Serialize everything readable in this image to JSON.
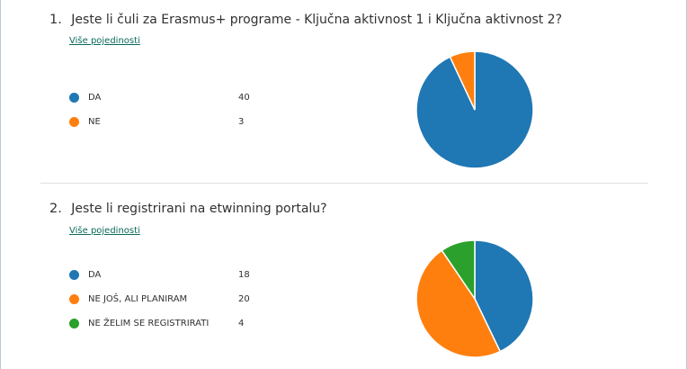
{
  "questions": [
    {
      "number": "1.",
      "title": "Jeste li čuli za Erasmus+ programe - Ključna aktivnost 1 i Ključna aktivnost 2?",
      "details_link": "Više pojedinosti",
      "legend": [
        {
          "label": "DA",
          "count": "40",
          "color": "#1f77b4"
        },
        {
          "label": "NE",
          "count": "3",
          "color": "#ff7f0e"
        }
      ]
    },
    {
      "number": "2.",
      "title": "Jeste li registrirani na etwinning portalu?",
      "details_link": "Više pojedinosti",
      "legend": [
        {
          "label": "DA",
          "count": "18",
          "color": "#1f77b4"
        },
        {
          "label": "NE JOŠ, ALI PLANIRAM",
          "count": "20",
          "color": "#ff7f0e"
        },
        {
          "label": "NE ŽELIM SE REGISTRIRATI",
          "count": "4",
          "color": "#2ca02c"
        }
      ]
    }
  ],
  "chart_data": [
    {
      "type": "pie",
      "categories": [
        "DA",
        "NE"
      ],
      "values": [
        40,
        3
      ],
      "colors": [
        "#1f77b4",
        "#ff7f0e"
      ]
    },
    {
      "type": "pie",
      "categories": [
        "DA",
        "NE JOŠ, ALI PLANIRAM",
        "NE ŽELIM SE REGISTRIRATI"
      ],
      "values": [
        18,
        20,
        4
      ],
      "colors": [
        "#1f77b4",
        "#ff7f0e",
        "#2ca02c"
      ]
    }
  ]
}
